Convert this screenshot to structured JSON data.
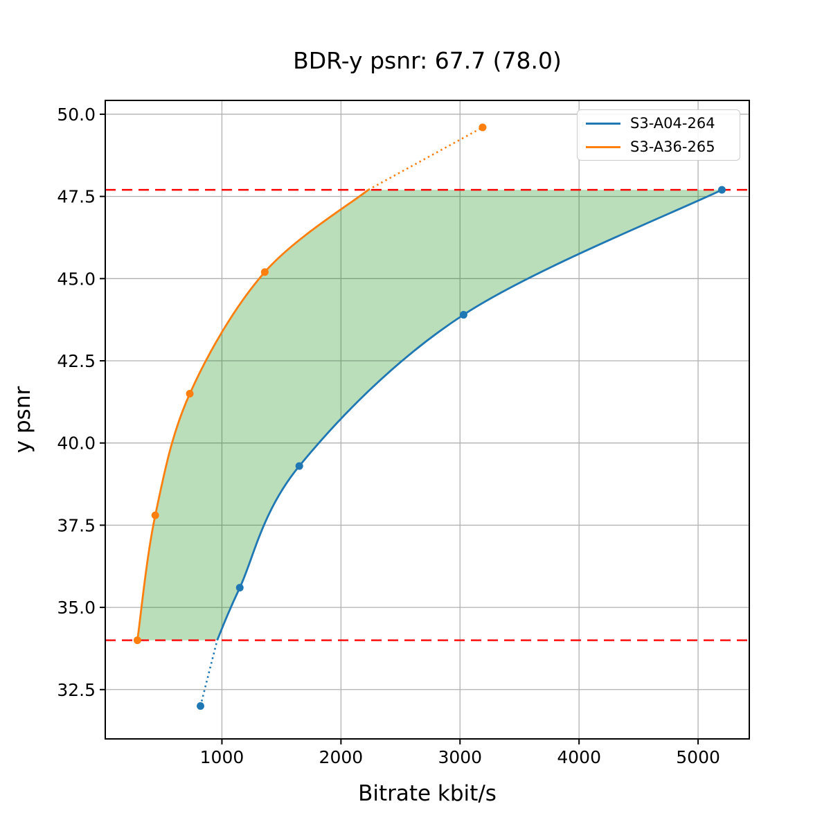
{
  "chart_data": {
    "type": "line",
    "title": "BDR-y psnr: 67.7 (78.0)",
    "xlabel": "Bitrate kbit/s",
    "ylabel": "y psnr",
    "xlim": [
      20,
      5430
    ],
    "ylim": [
      31.0,
      50.42
    ],
    "x_ticks": [
      1000,
      2000,
      3000,
      4000,
      5000
    ],
    "y_ticks": [
      32.5,
      35.0,
      37.5,
      40.0,
      42.5,
      45.0,
      47.5,
      50.0
    ],
    "grid": true,
    "grid_color": "#b0b0b0",
    "series": [
      {
        "name": "S3-A04-264",
        "color": "#1f77b4",
        "points": [
          [
            820,
            32.0
          ],
          [
            1150,
            35.6
          ],
          [
            1650,
            39.3
          ],
          [
            3030,
            43.9
          ],
          [
            5200,
            47.7
          ]
        ],
        "dotted_segment": "below-range",
        "range_cross": {
          "y": 34.0,
          "x": 960
        }
      },
      {
        "name": "S3-A36-265",
        "color": "#ff7f0e",
        "points": [
          [
            290,
            34.0
          ],
          [
            440,
            37.8
          ],
          [
            730,
            41.5
          ],
          [
            1360,
            45.2
          ],
          [
            3190,
            49.6
          ]
        ],
        "dotted_segment": "above-range",
        "range_cross": {
          "y": 47.7,
          "x": 2230
        }
      }
    ],
    "hlines": [
      {
        "y": 47.7,
        "color": "#ff0000",
        "style": "dashed"
      },
      {
        "y": 34.0,
        "color": "#ff0000",
        "style": "dashed"
      }
    ],
    "shaded_region": {
      "color_rgb": "0,128,0",
      "alpha": 0.27,
      "description": "area between the two rate-distortion curves inside psnr range 34.0 to 47.7"
    },
    "legend_position": "upper right"
  }
}
